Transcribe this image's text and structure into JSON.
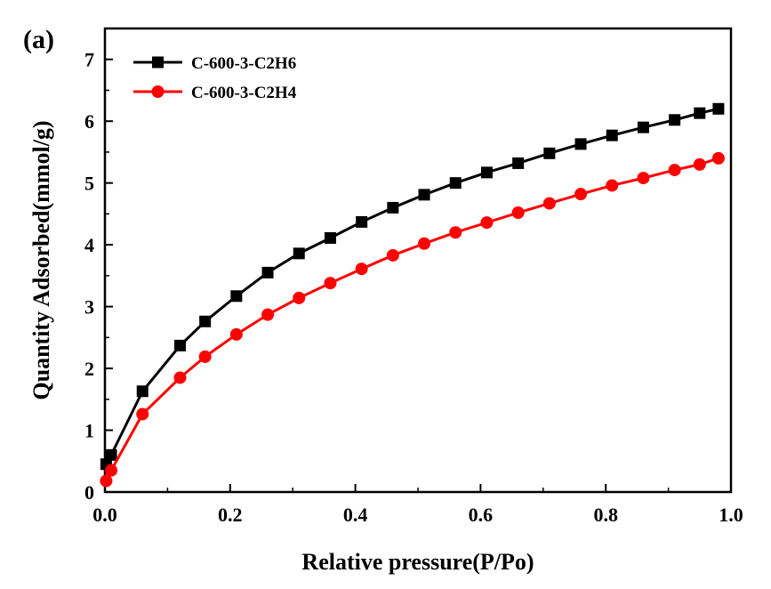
{
  "panel_label": "(a)",
  "chart_data": {
    "type": "line",
    "xlabel": "Relative pressure(P/Po)",
    "ylabel": "Quantity Adsorbed(mmol/g)",
    "xlim": [
      0.0,
      1.0
    ],
    "ylim": [
      0,
      7.5
    ],
    "xticks": [
      "0.0",
      "0.2",
      "0.4",
      "0.6",
      "0.8",
      "1.0"
    ],
    "yticks": [
      "0",
      "1",
      "2",
      "3",
      "4",
      "5",
      "6",
      "7"
    ],
    "legend_position": "top-left",
    "series": [
      {
        "name": "C-600-3-C2H6",
        "color": "#000000",
        "marker": "square",
        "x": [
          0.002,
          0.01,
          0.06,
          0.12,
          0.16,
          0.21,
          0.26,
          0.31,
          0.36,
          0.41,
          0.46,
          0.51,
          0.56,
          0.61,
          0.66,
          0.71,
          0.76,
          0.81,
          0.86,
          0.91,
          0.95,
          0.98
        ],
        "y": [
          0.45,
          0.6,
          1.63,
          2.37,
          2.76,
          3.17,
          3.55,
          3.86,
          4.11,
          4.37,
          4.6,
          4.81,
          5.0,
          5.17,
          5.32,
          5.48,
          5.63,
          5.77,
          5.9,
          6.02,
          6.13,
          6.2
        ]
      },
      {
        "name": "C-600-3-C2H4",
        "color": "#ff0000",
        "marker": "circle",
        "x": [
          0.002,
          0.01,
          0.06,
          0.12,
          0.16,
          0.21,
          0.26,
          0.31,
          0.36,
          0.41,
          0.46,
          0.51,
          0.56,
          0.61,
          0.66,
          0.71,
          0.76,
          0.81,
          0.86,
          0.91,
          0.95,
          0.98
        ],
        "y": [
          0.18,
          0.35,
          1.26,
          1.85,
          2.19,
          2.55,
          2.87,
          3.14,
          3.38,
          3.61,
          3.83,
          4.02,
          4.2,
          4.36,
          4.52,
          4.67,
          4.82,
          4.96,
          5.08,
          5.21,
          5.3,
          5.4
        ]
      }
    ]
  }
}
